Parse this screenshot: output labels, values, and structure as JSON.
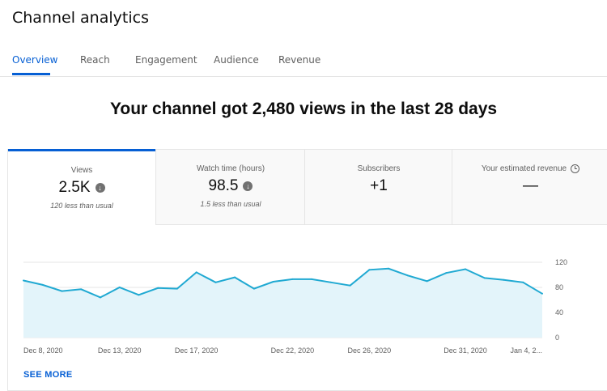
{
  "page": {
    "title": "Channel analytics"
  },
  "tabs": [
    {
      "label": "Overview",
      "active": true
    },
    {
      "label": "Reach"
    },
    {
      "label": "Engagement"
    },
    {
      "label": "Audience"
    },
    {
      "label": "Revenue"
    }
  ],
  "headline": "Your channel got 2,480 views in the last 28 days",
  "stats": [
    {
      "label": "Views",
      "value": "2.5K",
      "sub": "120 less than usual",
      "active": true,
      "icon": "down-arrow-icon"
    },
    {
      "label": "Watch time (hours)",
      "value": "98.5",
      "sub": "1.5 less than usual",
      "icon": "down-arrow-icon"
    },
    {
      "label": "Subscribers",
      "value": "+1",
      "sub": ""
    },
    {
      "label": "Your estimated revenue",
      "value": "—",
      "sub": "",
      "icon": "clock-icon"
    }
  ],
  "colors": {
    "accent": "#065fd4",
    "line": "#20a9d2",
    "fill": "#e3f4fa"
  },
  "chart_data": {
    "type": "area",
    "x": [
      "Dec 8, 2020",
      "Dec 9",
      "Dec 10",
      "Dec 11",
      "Dec 12",
      "Dec 13, 2020",
      "Dec 14",
      "Dec 15",
      "Dec 16",
      "Dec 17, 2020",
      "Dec 18",
      "Dec 19",
      "Dec 20",
      "Dec 21",
      "Dec 22, 2020",
      "Dec 23",
      "Dec 24",
      "Dec 25",
      "Dec 26, 2020",
      "Dec 27",
      "Dec 28",
      "Dec 29",
      "Dec 30",
      "Dec 31, 2020",
      "Jan 1",
      "Jan 2",
      "Jan 3",
      "Jan 4, 2021"
    ],
    "values": [
      91,
      84,
      74,
      77,
      64,
      80,
      68,
      79,
      78,
      104,
      88,
      96,
      78,
      89,
      93,
      93,
      88,
      83,
      108,
      110,
      99,
      90,
      103,
      109,
      95,
      92,
      88,
      70
    ],
    "tick_labels": [
      "Dec 8, 2020",
      "Dec 13, 2020",
      "Dec 17, 2020",
      "Dec 22, 2020",
      "Dec 26, 2020",
      "Dec 31, 2020",
      "Jan 4, 2..."
    ],
    "tick_indices": [
      0,
      5,
      9,
      14,
      18,
      23,
      27
    ],
    "y_ticks": [
      "0",
      "40",
      "80",
      "120"
    ],
    "ylim": [
      0,
      120
    ],
    "grid": true
  },
  "see_more": "SEE MORE"
}
